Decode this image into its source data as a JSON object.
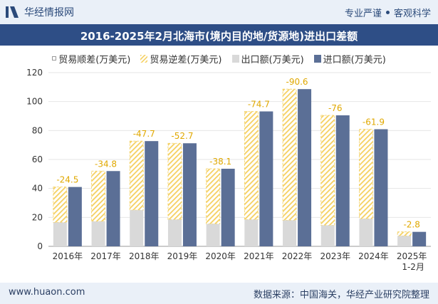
{
  "header": {
    "brand": "华经情报网",
    "slogan_left": "专业严谨",
    "slogan_right": "客观科学"
  },
  "chart_data": {
    "type": "bar",
    "title": "2016-2025年2月北海市(境内目的地/货源地)进出口差额",
    "categories": [
      "2016年",
      "2017年",
      "2018年",
      "2019年",
      "2020年",
      "2021年",
      "2022年",
      "2023年",
      "2024年",
      "2025年 1-2月"
    ],
    "ylim": [
      0,
      120
    ],
    "yticks": [
      0,
      20,
      40,
      60,
      80,
      100,
      120
    ],
    "legend_position": "top",
    "series": [
      {
        "name": "贸易顺差(万美元)",
        "values": [
          0,
          0,
          0,
          0,
          0,
          0,
          0,
          0,
          0,
          0
        ]
      },
      {
        "name": "贸易逆差(万美元)",
        "values": [
          -24.5,
          -34.8,
          -47.7,
          -52.7,
          -38.1,
          -74.7,
          -90.6,
          -76,
          -61.9,
          -2.8
        ]
      },
      {
        "name": "出口额(万美元)",
        "values": [
          16.5,
          17.2,
          25,
          18.5,
          15.5,
          18.5,
          18,
          14.5,
          19,
          7.2
        ]
      },
      {
        "name": "进口额(万美元)",
        "values": [
          41,
          52,
          72.7,
          71.2,
          53.6,
          93.2,
          108.6,
          90.5,
          80.9,
          10
        ]
      }
    ],
    "colors": {
      "export": "#d9d9d9",
      "import": "#5b6f96",
      "deficit_stripe": "#f5d060",
      "deficit_label": "#e0a800"
    }
  },
  "footer": {
    "url": "www.huaon.com",
    "source": "数据来源：中国海关，华经产业研究院整理"
  }
}
